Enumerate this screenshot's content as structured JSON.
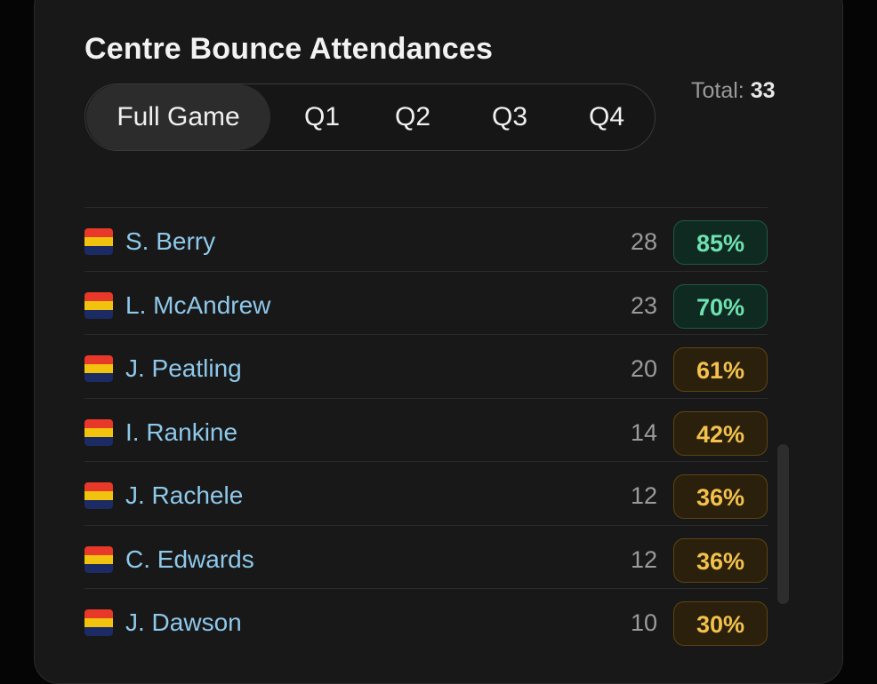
{
  "panel": {
    "title": "Centre Bounce Attendances",
    "total_label": "Total:",
    "total_value": "33"
  },
  "tabs": [
    {
      "label": "Full Game",
      "active": true
    },
    {
      "label": "Q1",
      "active": false
    },
    {
      "label": "Q2",
      "active": false
    },
    {
      "label": "Q3",
      "active": false
    },
    {
      "label": "Q4",
      "active": false
    }
  ],
  "team_flag_icon": "team-flag-icon",
  "colors": {
    "flag_red": "#e8382a",
    "flag_yellow": "#f2c30e",
    "flag_navy": "#1c2b63",
    "name_blue": "#8ec8ea",
    "badge_green": "#6ee2b1",
    "badge_amber": "#f3c14c"
  },
  "players": [
    {
      "name": "S. Berry",
      "count": "28",
      "pct": "85%",
      "tier": "green"
    },
    {
      "name": "L. McAndrew",
      "count": "23",
      "pct": "70%",
      "tier": "green"
    },
    {
      "name": "J. Peatling",
      "count": "20",
      "pct": "61%",
      "tier": "amber"
    },
    {
      "name": "I. Rankine",
      "count": "14",
      "pct": "42%",
      "tier": "amber"
    },
    {
      "name": "J. Rachele",
      "count": "12",
      "pct": "36%",
      "tier": "amber"
    },
    {
      "name": "C. Edwards",
      "count": "12",
      "pct": "36%",
      "tier": "amber"
    },
    {
      "name": "J. Dawson",
      "count": "10",
      "pct": "30%",
      "tier": "amber"
    }
  ]
}
